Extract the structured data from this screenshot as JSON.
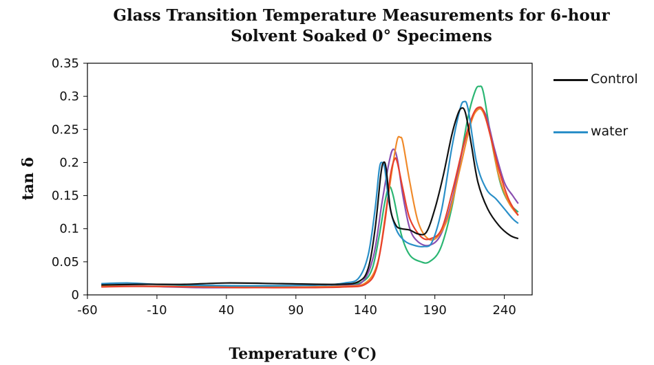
{
  "chart_data": {
    "type": "line",
    "title": [
      "Glass Transition Temperature  Measurements for 6-hour",
      "Solvent Soaked 0° Specimens"
    ],
    "xlabel": "Temperature (°C)",
    "ylabel": "tan δ",
    "xlim": [
      -60,
      260
    ],
    "ylim": [
      0,
      0.35
    ],
    "xticks": [
      -60,
      -10,
      40,
      90,
      140,
      190,
      240
    ],
    "xtick_labels": [
      "-60",
      "-10",
      "40",
      "90",
      "140",
      "190",
      "240"
    ],
    "yticks": [
      0,
      0.05,
      0.1,
      0.15,
      0.2,
      0.25,
      0.3,
      0.35
    ],
    "ytick_labels": [
      "0",
      "0.05",
      "0.1",
      "0.15",
      "0.2",
      "0.25",
      "0.3",
      "0.35"
    ],
    "grid": false,
    "legend_position": "right",
    "series": [
      {
        "name": "Control",
        "color": "#111111",
        "points": [
          [
            -50,
            0.015
          ],
          [
            -20,
            0.016
          ],
          [
            10,
            0.016
          ],
          [
            40,
            0.018
          ],
          [
            80,
            0.017
          ],
          [
            120,
            0.016
          ],
          [
            135,
            0.02
          ],
          [
            142,
            0.04
          ],
          [
            147,
            0.1
          ],
          [
            151,
            0.18
          ],
          [
            153,
            0.2
          ],
          [
            155,
            0.19
          ],
          [
            158,
            0.13
          ],
          [
            162,
            0.105
          ],
          [
            166,
            0.1
          ],
          [
            172,
            0.098
          ],
          [
            178,
            0.092
          ],
          [
            184,
            0.095
          ],
          [
            190,
            0.13
          ],
          [
            196,
            0.18
          ],
          [
            202,
            0.24
          ],
          [
            206,
            0.27
          ],
          [
            209,
            0.282
          ],
          [
            212,
            0.275
          ],
          [
            216,
            0.23
          ],
          [
            221,
            0.17
          ],
          [
            228,
            0.13
          ],
          [
            236,
            0.105
          ],
          [
            244,
            0.09
          ],
          [
            250,
            0.085
          ]
        ]
      },
      {
        "name": "water",
        "color": "#2a8fc8",
        "points": [
          [
            -50,
            0.017
          ],
          [
            -30,
            0.018
          ],
          [
            -10,
            0.016
          ],
          [
            40,
            0.014
          ],
          [
            80,
            0.014
          ],
          [
            110,
            0.015
          ],
          [
            125,
            0.018
          ],
          [
            135,
            0.025
          ],
          [
            142,
            0.06
          ],
          [
            147,
            0.13
          ],
          [
            150,
            0.19
          ],
          [
            152,
            0.2
          ],
          [
            154,
            0.19
          ],
          [
            157,
            0.14
          ],
          [
            162,
            0.1
          ],
          [
            168,
            0.082
          ],
          [
            175,
            0.075
          ],
          [
            182,
            0.073
          ],
          [
            188,
            0.08
          ],
          [
            195,
            0.13
          ],
          [
            202,
            0.22
          ],
          [
            208,
            0.28
          ],
          [
            211,
            0.292
          ],
          [
            214,
            0.28
          ],
          [
            220,
            0.2
          ],
          [
            227,
            0.16
          ],
          [
            234,
            0.145
          ],
          [
            240,
            0.13
          ],
          [
            246,
            0.115
          ],
          [
            250,
            0.108
          ]
        ]
      },
      {
        "name": "",
        "color": "#2bb673",
        "points": [
          [
            -50,
            0.013
          ],
          [
            -20,
            0.013
          ],
          [
            20,
            0.013
          ],
          [
            60,
            0.012
          ],
          [
            100,
            0.012
          ],
          [
            125,
            0.015
          ],
          [
            138,
            0.02
          ],
          [
            145,
            0.04
          ],
          [
            150,
            0.09
          ],
          [
            154,
            0.14
          ],
          [
            157,
            0.163
          ],
          [
            160,
            0.15
          ],
          [
            166,
            0.09
          ],
          [
            172,
            0.06
          ],
          [
            180,
            0.05
          ],
          [
            186,
            0.05
          ],
          [
            194,
            0.07
          ],
          [
            202,
            0.13
          ],
          [
            208,
            0.2
          ],
          [
            214,
            0.27
          ],
          [
            219,
            0.308
          ],
          [
            222,
            0.315
          ],
          [
            225,
            0.305
          ],
          [
            231,
            0.23
          ],
          [
            237,
            0.17
          ],
          [
            243,
            0.14
          ],
          [
            250,
            0.125
          ]
        ]
      },
      {
        "name": "",
        "color": "#8a4fb0",
        "points": [
          [
            -50,
            0.013
          ],
          [
            -20,
            0.013
          ],
          [
            20,
            0.011
          ],
          [
            60,
            0.011
          ],
          [
            100,
            0.012
          ],
          [
            125,
            0.014
          ],
          [
            138,
            0.02
          ],
          [
            146,
            0.06
          ],
          [
            152,
            0.14
          ],
          [
            157,
            0.2
          ],
          [
            160,
            0.22
          ],
          [
            163,
            0.205
          ],
          [
            167,
            0.15
          ],
          [
            172,
            0.1
          ],
          [
            178,
            0.08
          ],
          [
            186,
            0.075
          ],
          [
            194,
            0.09
          ],
          [
            202,
            0.14
          ],
          [
            210,
            0.22
          ],
          [
            217,
            0.27
          ],
          [
            222,
            0.282
          ],
          [
            227,
            0.27
          ],
          [
            233,
            0.22
          ],
          [
            240,
            0.17
          ],
          [
            246,
            0.15
          ],
          [
            250,
            0.138
          ]
        ]
      },
      {
        "name": "",
        "color": "#f08a2a",
        "points": [
          [
            -50,
            0.013
          ],
          [
            -20,
            0.013
          ],
          [
            20,
            0.012
          ],
          [
            60,
            0.011
          ],
          [
            100,
            0.012
          ],
          [
            125,
            0.013
          ],
          [
            140,
            0.018
          ],
          [
            149,
            0.05
          ],
          [
            155,
            0.13
          ],
          [
            160,
            0.2
          ],
          [
            163,
            0.235
          ],
          [
            165,
            0.238
          ],
          [
            167,
            0.23
          ],
          [
            172,
            0.17
          ],
          [
            178,
            0.11
          ],
          [
            185,
            0.085
          ],
          [
            192,
            0.088
          ],
          [
            200,
            0.12
          ],
          [
            208,
            0.19
          ],
          [
            216,
            0.26
          ],
          [
            221,
            0.28
          ],
          [
            225,
            0.275
          ],
          [
            230,
            0.24
          ],
          [
            236,
            0.18
          ],
          [
            243,
            0.14
          ],
          [
            250,
            0.12
          ]
        ]
      },
      {
        "name": "",
        "color": "#e8412c",
        "points": [
          [
            -50,
            0.012
          ],
          [
            -20,
            0.013
          ],
          [
            20,
            0.012
          ],
          [
            60,
            0.011
          ],
          [
            100,
            0.011
          ],
          [
            125,
            0.012
          ],
          [
            140,
            0.016
          ],
          [
            148,
            0.04
          ],
          [
            154,
            0.11
          ],
          [
            158,
            0.18
          ],
          [
            161,
            0.205
          ],
          [
            163,
            0.2
          ],
          [
            167,
            0.16
          ],
          [
            172,
            0.115
          ],
          [
            180,
            0.088
          ],
          [
            187,
            0.085
          ],
          [
            195,
            0.1
          ],
          [
            203,
            0.16
          ],
          [
            211,
            0.23
          ],
          [
            217,
            0.27
          ],
          [
            221,
            0.283
          ],
          [
            225,
            0.278
          ],
          [
            230,
            0.24
          ],
          [
            236,
            0.19
          ],
          [
            243,
            0.145
          ],
          [
            250,
            0.12
          ]
        ]
      }
    ]
  }
}
